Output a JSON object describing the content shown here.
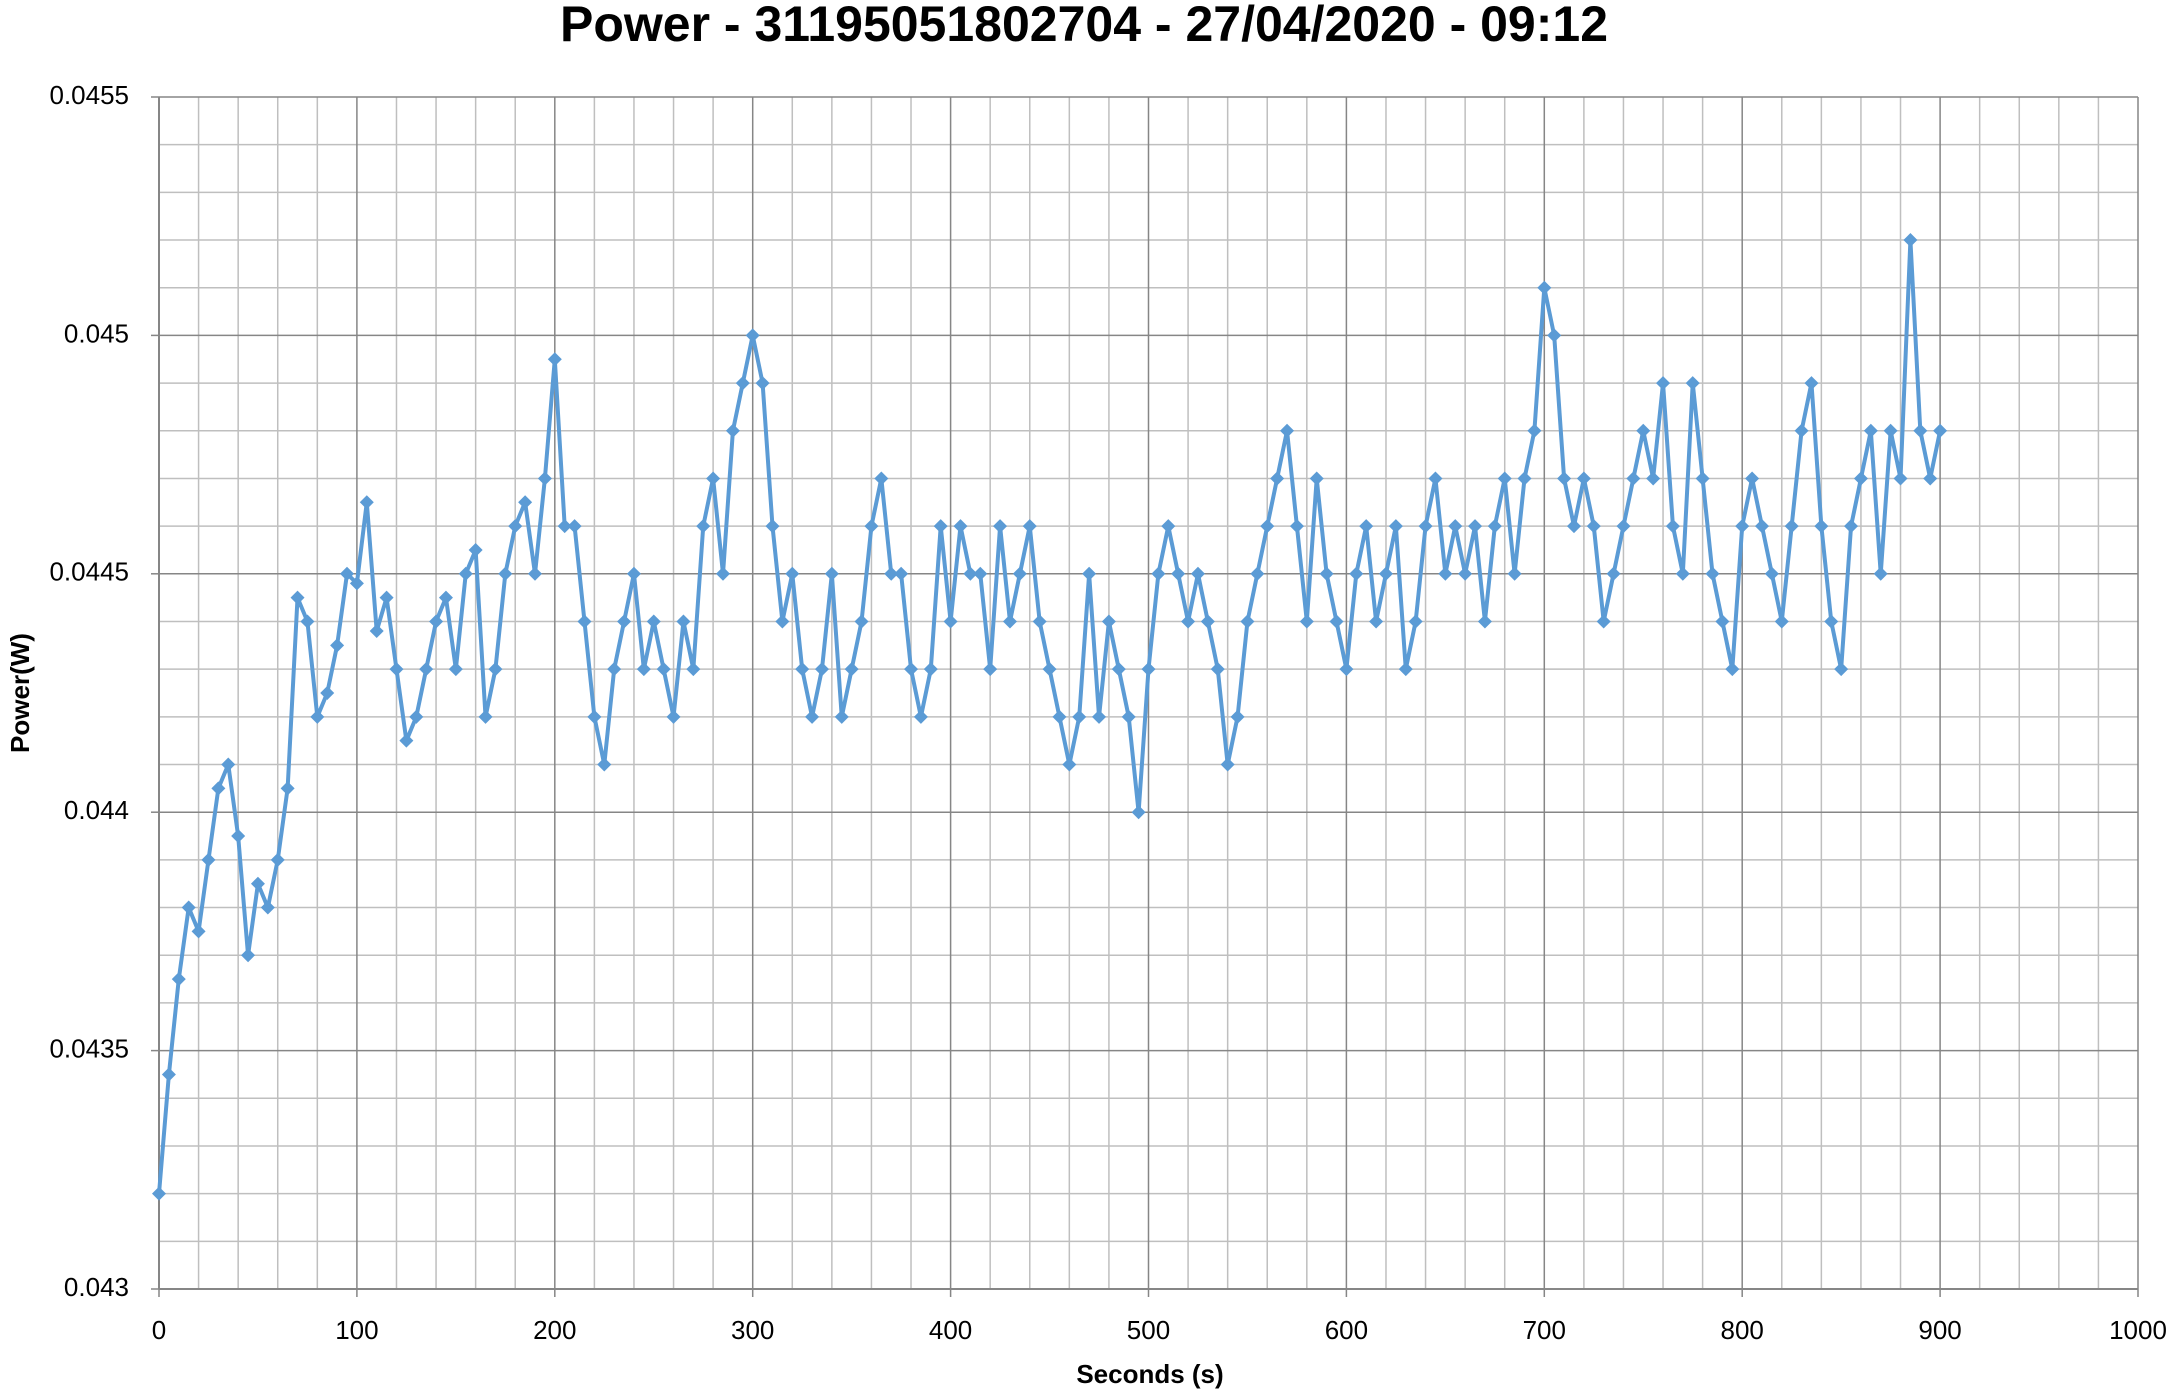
{
  "chart_data": {
    "type": "line",
    "title": "Power - 31195051802704 - 27/04/2020 - 09:12",
    "x_label": "Seconds (s)",
    "y_label": "Power(W)",
    "xlim": [
      0,
      1000
    ],
    "ylim": [
      0.043,
      0.0455
    ],
    "xticks": [
      0,
      100,
      200,
      300,
      400,
      500,
      600,
      700,
      800,
      900,
      1000
    ],
    "yticks": [
      0.043,
      0.0435,
      0.044,
      0.0445,
      0.045,
      0.0455
    ],
    "x_minor_ticks": [
      20,
      40,
      60,
      80,
      120,
      140,
      160,
      180,
      220,
      240,
      260,
      280,
      320,
      340,
      360,
      380,
      420,
      440,
      460,
      480,
      520,
      540,
      560,
      580,
      620,
      640,
      660,
      680,
      720,
      740,
      760,
      780,
      820,
      840,
      860,
      880,
      920,
      940,
      960,
      980
    ],
    "y_minor_ticks": [
      0.0431,
      0.0432,
      0.0433,
      0.0434,
      0.0436,
      0.0437,
      0.0438,
      0.0439,
      0.0441,
      0.0442,
      0.0443,
      0.0444,
      0.0446,
      0.0447,
      0.0448,
      0.0449,
      0.0451,
      0.0452,
      0.0453,
      0.0454
    ],
    "grid": true,
    "marker": "diamond",
    "x": [
      0,
      5,
      10,
      15,
      20,
      25,
      30,
      35,
      40,
      45,
      50,
      55,
      60,
      65,
      70,
      75,
      80,
      85,
      90,
      95,
      100,
      105,
      110,
      115,
      120,
      125,
      130,
      135,
      140,
      145,
      150,
      155,
      160,
      165,
      170,
      175,
      180,
      185,
      190,
      195,
      200,
      205,
      210,
      215,
      220,
      225,
      230,
      235,
      240,
      245,
      250,
      255,
      260,
      265,
      270,
      275,
      280,
      285,
      290,
      295,
      300,
      305,
      310,
      315,
      320,
      325,
      330,
      335,
      340,
      345,
      350,
      355,
      360,
      365,
      370,
      375,
      380,
      385,
      390,
      395,
      400,
      405,
      410,
      415,
      420,
      425,
      430,
      435,
      440,
      445,
      450,
      455,
      460,
      465,
      470,
      475,
      480,
      485,
      490,
      495,
      500,
      505,
      510,
      515,
      520,
      525,
      530,
      535,
      540,
      545,
      550,
      555,
      560,
      565,
      570,
      575,
      580,
      585,
      590,
      595,
      600,
      605,
      610,
      615,
      620,
      625,
      630,
      635,
      640,
      645,
      650,
      655,
      660,
      665,
      670,
      675,
      680,
      685,
      690,
      695,
      700,
      705,
      710,
      715,
      720,
      725,
      730,
      735,
      740,
      745,
      750,
      755,
      760,
      765,
      770,
      775,
      780,
      785,
      790,
      795,
      800,
      805,
      810,
      815,
      820,
      825,
      830,
      835,
      840,
      845,
      850,
      855,
      860,
      865,
      870,
      875,
      880,
      885,
      890,
      895,
      900
    ],
    "series": [
      {
        "name": "Power",
        "color": "#5b9bd5",
        "values": [
          0.0432,
          0.04345,
          0.04365,
          0.0438,
          0.04375,
          0.0439,
          0.04405,
          0.0441,
          0.04395,
          0.0437,
          0.04385,
          0.0438,
          0.0439,
          0.04405,
          0.04445,
          0.0444,
          0.0442,
          0.04425,
          0.04435,
          0.0445,
          0.04448,
          0.04465,
          0.04438,
          0.04445,
          0.0443,
          0.04415,
          0.0442,
          0.0443,
          0.0444,
          0.04445,
          0.0443,
          0.0445,
          0.04455,
          0.0442,
          0.0443,
          0.0445,
          0.0446,
          0.04465,
          0.0445,
          0.0447,
          0.04495,
          0.0446,
          0.0446,
          0.0444,
          0.0442,
          0.0441,
          0.0443,
          0.0444,
          0.0445,
          0.0443,
          0.0444,
          0.0443,
          0.0442,
          0.0444,
          0.0443,
          0.0446,
          0.0447,
          0.0445,
          0.0448,
          0.0449,
          0.045,
          0.0449,
          0.0446,
          0.0444,
          0.0445,
          0.0443,
          0.0442,
          0.0443,
          0.0445,
          0.0442,
          0.0443,
          0.0444,
          0.0446,
          0.0447,
          0.0445,
          0.0445,
          0.0443,
          0.0442,
          0.0443,
          0.0446,
          0.0444,
          0.0446,
          0.0445,
          0.0445,
          0.0443,
          0.0446,
          0.0444,
          0.0445,
          0.0446,
          0.0444,
          0.0443,
          0.0442,
          0.0441,
          0.0442,
          0.0445,
          0.0442,
          0.0444,
          0.0443,
          0.0442,
          0.044,
          0.0443,
          0.0445,
          0.0446,
          0.0445,
          0.0444,
          0.0445,
          0.0444,
          0.0443,
          0.0441,
          0.0442,
          0.0444,
          0.0445,
          0.0446,
          0.0447,
          0.0448,
          0.0446,
          0.0444,
          0.0447,
          0.0445,
          0.0444,
          0.0443,
          0.0445,
          0.0446,
          0.0444,
          0.0445,
          0.0446,
          0.0443,
          0.0444,
          0.0446,
          0.0447,
          0.0445,
          0.0446,
          0.0445,
          0.0446,
          0.0444,
          0.0446,
          0.0447,
          0.0445,
          0.0447,
          0.0448,
          0.0451,
          0.045,
          0.0447,
          0.0446,
          0.0447,
          0.0446,
          0.0444,
          0.0445,
          0.0446,
          0.0447,
          0.0448,
          0.0447,
          0.0449,
          0.0446,
          0.0445,
          0.0449,
          0.0447,
          0.0445,
          0.0444,
          0.0443,
          0.0446,
          0.0447,
          0.0446,
          0.0445,
          0.0444,
          0.0446,
          0.0448,
          0.0449,
          0.0446,
          0.0444,
          0.0443,
          0.0446,
          0.0447,
          0.0448,
          0.0445,
          0.0448,
          0.0447,
          0.0452,
          0.0448,
          0.0447,
          0.0448
        ]
      }
    ]
  }
}
